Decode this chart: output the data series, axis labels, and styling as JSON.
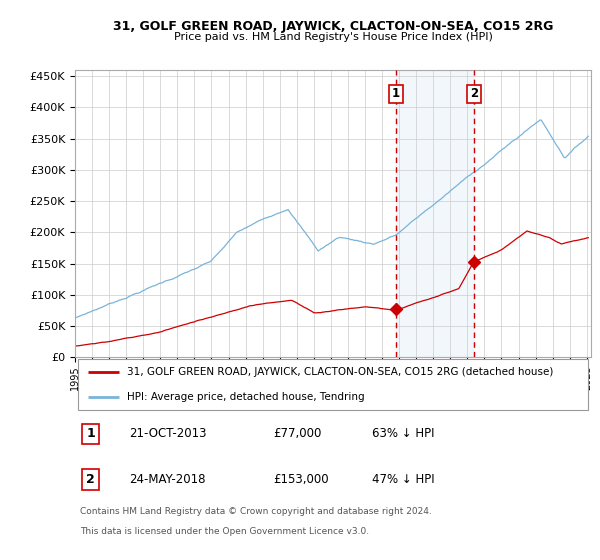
{
  "title": "31, GOLF GREEN ROAD, JAYWICK, CLACTON-ON-SEA, CO15 2RG",
  "subtitle": "Price paid vs. HM Land Registry's House Price Index (HPI)",
  "ylim": [
    0,
    460000
  ],
  "yticks": [
    0,
    50000,
    100000,
    150000,
    200000,
    250000,
    300000,
    350000,
    400000,
    450000
  ],
  "ytick_labels": [
    "£0",
    "£50K",
    "£100K",
    "£150K",
    "£200K",
    "£250K",
    "£300K",
    "£350K",
    "£400K",
    "£450K"
  ],
  "hpi_color": "#7ab4d8",
  "price_color": "#cc0000",
  "marker_color": "#cc0000",
  "shade_color": "#ddeeff",
  "dashed_color": "#cc0000",
  "transaction1_date": "2013-10-21",
  "transaction1_price": 77000,
  "transaction2_date": "2018-05-24",
  "transaction2_price": 153000,
  "legend_property": "31, GOLF GREEN ROAD, JAYWICK, CLACTON-ON-SEA, CO15 2RG (detached house)",
  "legend_hpi": "HPI: Average price, detached house, Tendring",
  "note1_date": "21-OCT-2013",
  "note1_price": "£77,000",
  "note1_pct": "63% ↓ HPI",
  "note2_date": "24-MAY-2018",
  "note2_price": "£153,000",
  "note2_pct": "47% ↓ HPI",
  "footnote_line1": "Contains HM Land Registry data © Crown copyright and database right 2024.",
  "footnote_line2": "This data is licensed under the Open Government Licence v3.0."
}
